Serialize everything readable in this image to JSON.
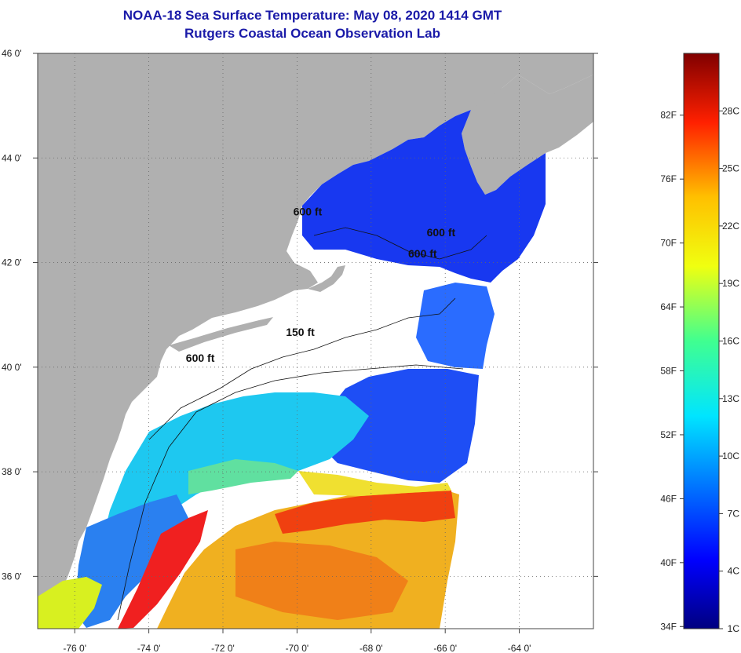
{
  "title": "NOAA-18 Sea Surface Temperature:  May 08, 2020 1414 GMT",
  "subtitle": "Rutgers Coastal Ocean Observation Lab",
  "map": {
    "lat_labels": [
      "46 0'",
      "44 0'",
      "42 0'",
      "40 0'",
      "38 0'",
      "36 0'"
    ],
    "lat_values": [
      46,
      44,
      42,
      40,
      38,
      36
    ],
    "lon_labels": [
      "-76 0'",
      "-74 0'",
      "-72 0'",
      "-70 0'",
      "-68 0'",
      "-66 0'",
      "-64 0'"
    ],
    "lon_values": [
      -76,
      -74,
      -72,
      -70,
      -68,
      -66,
      -64
    ],
    "lat_range": [
      35.0,
      46.0
    ],
    "lon_range": [
      -77.0,
      -62.0
    ],
    "contours": [
      {
        "label": "600 ft",
        "lon": -73.0,
        "lat": 40.1
      },
      {
        "label": "150 ft",
        "lon": -70.3,
        "lat": 40.6
      },
      {
        "label": "600 ft",
        "lon": -70.1,
        "lat": 42.9
      },
      {
        "label": "600 ft",
        "lon": -67.0,
        "lat": 42.1
      },
      {
        "label": "600 ft",
        "lon": -66.5,
        "lat": 42.5
      }
    ],
    "colors": {
      "land": "#b0b0b0",
      "no_data": "#ffffff",
      "grid": "#666666"
    }
  },
  "colorbar": {
    "fahrenheit_labels": [
      "82F",
      "76F",
      "70F",
      "64F",
      "58F",
      "52F",
      "46F",
      "40F",
      "34F"
    ],
    "celsius_labels": [
      "28C",
      "25C",
      "22C",
      "19C",
      "16C",
      "13C",
      "10C",
      "7C",
      "4C",
      "1C"
    ],
    "range_c": [
      1,
      31
    ]
  }
}
